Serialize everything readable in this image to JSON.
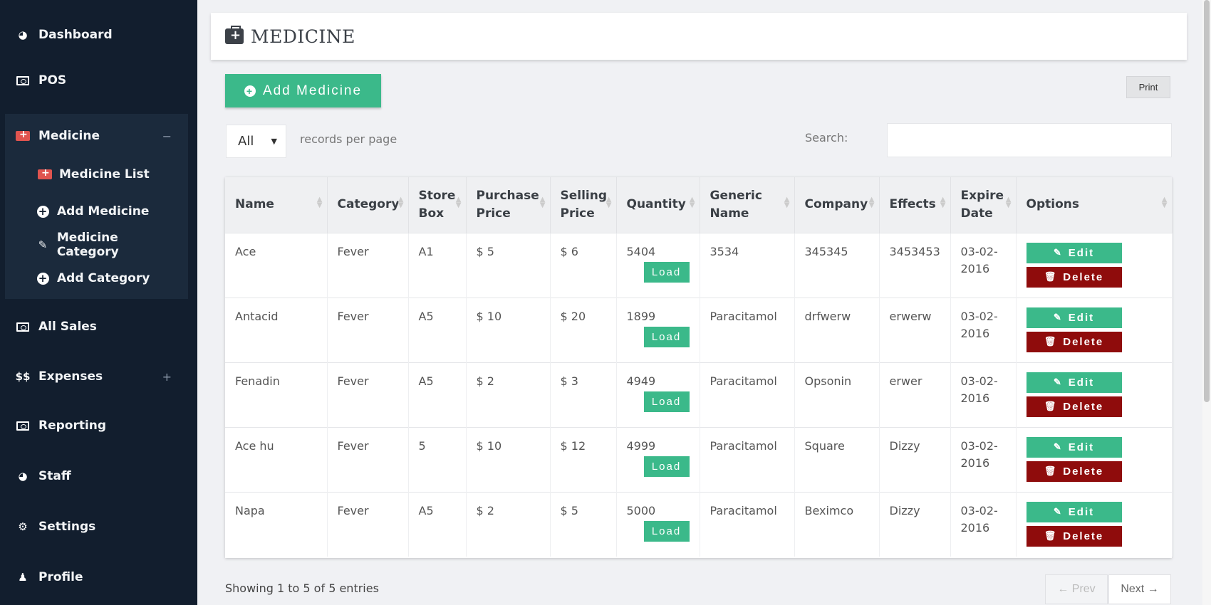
{
  "sidebar": {
    "items": [
      {
        "label": "Dashboard",
        "icon": "tachometer-icon"
      },
      {
        "label": "POS",
        "icon": "money-icon"
      },
      {
        "label": "Medicine",
        "icon": "medkit-icon",
        "expand": "−"
      },
      {
        "label": "All Sales",
        "icon": "money-icon"
      },
      {
        "label": "Expenses",
        "icon": "dollar-icon",
        "expand": "+"
      },
      {
        "label": "Reporting",
        "icon": "money-icon"
      },
      {
        "label": "Staff",
        "icon": "tachometer-icon"
      },
      {
        "label": "Settings",
        "icon": "cogs-icon"
      },
      {
        "label": "Profile",
        "icon": "user-icon"
      }
    ],
    "medicine_sub": [
      {
        "label": "Medicine List",
        "icon": "medkit-icon"
      },
      {
        "label": "Add Medicine",
        "icon": "plus-circle-icon"
      },
      {
        "label": "Medicine Category",
        "icon": "edit-icon"
      },
      {
        "label": "Add Category",
        "icon": "plus-circle-icon"
      }
    ]
  },
  "header": {
    "title": "MEDICINE",
    "icon": "medkit-icon"
  },
  "toolbar": {
    "add_label": "Add Medicine",
    "print_label": "Print"
  },
  "controls": {
    "per_page_value": "All",
    "per_page_text": "records per page",
    "search_label": "Search:",
    "search_value": ""
  },
  "table": {
    "columns": [
      "Name",
      "Category",
      "Store Box",
      "Purchase Price",
      "Selling Price",
      "Quantity",
      "Generic Name",
      "Company",
      "Effects",
      "Expire Date",
      "Options"
    ],
    "load_label": "Load",
    "edit_label": "Edit",
    "delete_label": "Delete",
    "rows": [
      {
        "name": "Ace",
        "category": "Fever",
        "store_box": "A1",
        "purchase": "$ 5",
        "selling": "$ 6",
        "quantity": "5404",
        "generic": "3534",
        "company": "345345",
        "effects": "3453453",
        "expire": "03-02-2016"
      },
      {
        "name": "Antacid",
        "category": "Fever",
        "store_box": "A5",
        "purchase": "$ 10",
        "selling": "$ 20",
        "quantity": "1899",
        "generic": "Paracitamol",
        "company": "drfwerw",
        "effects": "erwerw",
        "expire": "03-02-2016"
      },
      {
        "name": "Fenadin",
        "category": "Fever",
        "store_box": "A5",
        "purchase": "$ 2",
        "selling": "$ 3",
        "quantity": "4949",
        "generic": "Paracitamol",
        "company": "Opsonin",
        "effects": "erwer",
        "expire": "03-02-2016"
      },
      {
        "name": "Ace hu",
        "category": "Fever",
        "store_box": "5",
        "purchase": "$ 10",
        "selling": "$ 12",
        "quantity": "4999",
        "generic": "Paracitamol",
        "company": "Square",
        "effects": "Dizzy",
        "expire": "03-02-2016"
      },
      {
        "name": "Napa",
        "category": "Fever",
        "store_box": "A5",
        "purchase": "$ 2",
        "selling": "$ 5",
        "quantity": "5000",
        "generic": "Paracitamol",
        "company": "Beximco",
        "effects": "Dizzy",
        "expire": "03-02-2016"
      }
    ]
  },
  "footer": {
    "showing": "Showing 1 to 5 of 5 entries",
    "prev_label": "← Prev",
    "next_label": "Next →"
  },
  "colors": {
    "sidebar": "#121e2e",
    "accent_green": "#3bb98a",
    "delete_red": "#8f0c0c",
    "icon_red": "#e0544f"
  }
}
